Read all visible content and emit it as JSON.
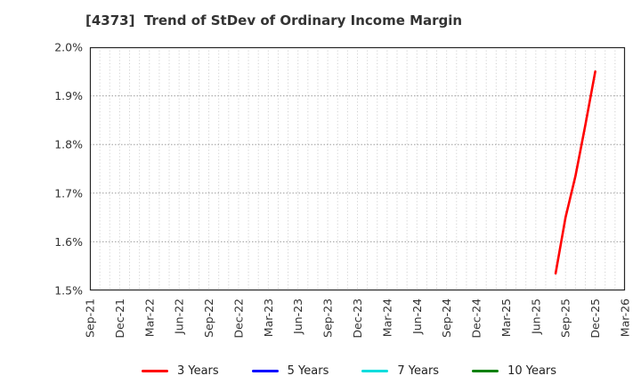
{
  "chart_data": {
    "type": "line",
    "title": "[4373]  Trend of StDev of Ordinary Income Margin",
    "xlabel": "",
    "ylabel": "",
    "ylim": [
      1.5,
      2.0
    ],
    "y_tick_labels": [
      "2.0%",
      "1.9%",
      "1.8%",
      "1.7%",
      "1.6%",
      "1.5%"
    ],
    "y_tick_values": [
      2.0,
      1.9,
      1.8,
      1.7,
      1.6,
      1.5
    ],
    "x_tick_labels": [
      "Sep-21",
      "Dec-21",
      "Mar-22",
      "Jun-22",
      "Sep-22",
      "Dec-22",
      "Mar-23",
      "Jun-23",
      "Sep-23",
      "Dec-23",
      "Mar-24",
      "Jun-24",
      "Sep-24",
      "Dec-24",
      "Mar-25",
      "Jun-25",
      "Sep-25",
      "Dec-25",
      "Mar-26"
    ],
    "x_axis_start": "Sep-21",
    "x_axis_end": "Mar-26",
    "grid": true,
    "legend_position": "bottom",
    "axis_color": "#262626",
    "grid_color_vertical": "#c9c9c9",
    "grid_color_horizontal": "#9e9e9e",
    "tick_label_color": "#333333",
    "title_color": "#333333",
    "series": [
      {
        "name": "3 Years",
        "color": "#ff0000",
        "points": [
          [
            "Aug-25",
            1.535
          ],
          [
            "Sep-25",
            1.65
          ],
          [
            "Oct-25",
            1.735
          ],
          [
            "Nov-25",
            1.84
          ],
          [
            "Dec-25",
            1.95
          ]
        ]
      },
      {
        "name": "5 Years",
        "color": "#0000ff",
        "points": []
      },
      {
        "name": "7 Years",
        "color": "#00dddd",
        "points": []
      },
      {
        "name": "10 Years",
        "color": "#008000",
        "points": []
      }
    ]
  }
}
